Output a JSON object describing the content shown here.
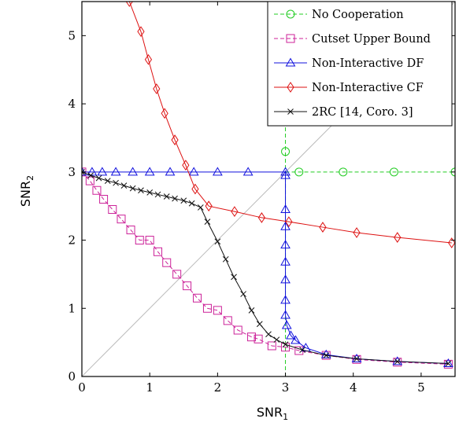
{
  "chart_data": {
    "type": "line",
    "xlabel": "SNR",
    "xlabel_sub": "1",
    "ylabel": "SNR",
    "ylabel_sub": "2",
    "xlim": [
      0,
      5.5
    ],
    "ylim": [
      0,
      5.5
    ],
    "xticks": [
      0,
      1,
      2,
      3,
      4,
      5
    ],
    "yticks": [
      0,
      1,
      2,
      3,
      4,
      5
    ],
    "grid": false,
    "legend_position": "top-right",
    "diagonal_reference": true,
    "series": [
      {
        "name": "No Cooperation",
        "color": "#22cc22",
        "dash": "dashed",
        "marker": "circle",
        "points": [
          [
            3,
            0
          ],
          [
            3,
            3
          ],
          [
            3,
            5.5
          ]
        ],
        "markers": [
          [
            3,
            3.3
          ],
          [
            3,
            4.45
          ],
          [
            3,
            5.5
          ]
        ],
        "points2": [
          [
            3,
            3
          ],
          [
            5.5,
            3
          ]
        ],
        "markers2": [
          [
            3.2,
            3
          ],
          [
            3.85,
            3
          ],
          [
            4.6,
            3
          ],
          [
            5.5,
            3
          ]
        ]
      },
      {
        "name": "Cutset Upper Bound",
        "color": "#cc2299",
        "dash": "dashed",
        "marker": "square",
        "points": [
          [
            0,
            3
          ],
          [
            0.12,
            2.87
          ],
          [
            0.22,
            2.73
          ],
          [
            0.32,
            2.6
          ],
          [
            0.45,
            2.45
          ],
          [
            0.58,
            2.31
          ],
          [
            0.72,
            2.15
          ],
          [
            0.85,
            2.0
          ],
          [
            1.0,
            2.0
          ],
          [
            1.12,
            1.83
          ],
          [
            1.25,
            1.67
          ],
          [
            1.4,
            1.5
          ],
          [
            1.55,
            1.33
          ],
          [
            1.7,
            1.15
          ],
          [
            1.85,
            1.0
          ],
          [
            2.0,
            0.97
          ],
          [
            2.15,
            0.82
          ],
          [
            2.3,
            0.68
          ],
          [
            2.5,
            0.58
          ],
          [
            2.6,
            0.55
          ],
          [
            2.8,
            0.45
          ],
          [
            3.0,
            0.43
          ],
          [
            3.2,
            0.38
          ],
          [
            3.6,
            0.31
          ],
          [
            4.05,
            0.25
          ],
          [
            4.65,
            0.21
          ],
          [
            5.4,
            0.18
          ]
        ]
      },
      {
        "name": "Non-Interactive DF",
        "color": "#1111dd",
        "dash": "solid",
        "marker": "triangle",
        "points": [
          [
            0,
            3
          ],
          [
            0.15,
            3
          ],
          [
            0.3,
            3
          ],
          [
            0.5,
            3
          ],
          [
            0.75,
            3
          ],
          [
            1.0,
            3
          ],
          [
            1.3,
            3
          ],
          [
            1.65,
            3
          ],
          [
            2.0,
            3
          ],
          [
            2.45,
            3
          ],
          [
            3.0,
            3
          ],
          [
            3.0,
            2.95
          ],
          [
            3.0,
            2.45
          ],
          [
            3.0,
            2.2
          ],
          [
            3.0,
            1.93
          ],
          [
            3.0,
            1.68
          ],
          [
            3.0,
            1.42
          ],
          [
            3.0,
            1.12
          ],
          [
            3.0,
            0.9
          ],
          [
            3.02,
            0.75
          ],
          [
            3.08,
            0.6
          ],
          [
            3.15,
            0.53
          ],
          [
            3.3,
            0.42
          ],
          [
            3.6,
            0.32
          ],
          [
            4.05,
            0.26
          ],
          [
            4.65,
            0.22
          ],
          [
            5.4,
            0.19
          ]
        ]
      },
      {
        "name": "Non-Interactive CF",
        "color": "#dd1111",
        "dash": "solid",
        "marker": "diamond",
        "points": [
          [
            0.7,
            5.5
          ],
          [
            0.87,
            5.06
          ],
          [
            0.98,
            4.65
          ],
          [
            1.1,
            4.22
          ],
          [
            1.22,
            3.86
          ],
          [
            1.37,
            3.47
          ],
          [
            1.53,
            3.1
          ],
          [
            1.67,
            2.75
          ],
          [
            1.87,
            2.5
          ],
          [
            2.25,
            2.42
          ],
          [
            2.65,
            2.33
          ],
          [
            3.05,
            2.27
          ],
          [
            3.55,
            2.19
          ],
          [
            4.05,
            2.11
          ],
          [
            4.65,
            2.04
          ],
          [
            5.45,
            1.96
          ]
        ]
      },
      {
        "name": "2RC [14, Coro. 3]",
        "color": "#111111",
        "dash": "solid",
        "marker": "x",
        "points": [
          [
            0,
            3
          ],
          [
            0.13,
            2.95
          ],
          [
            0.25,
            2.91
          ],
          [
            0.38,
            2.87
          ],
          [
            0.5,
            2.84
          ],
          [
            0.62,
            2.8
          ],
          [
            0.75,
            2.76
          ],
          [
            0.87,
            2.73
          ],
          [
            1.0,
            2.7
          ],
          [
            1.12,
            2.67
          ],
          [
            1.25,
            2.64
          ],
          [
            1.37,
            2.61
          ],
          [
            1.5,
            2.58
          ],
          [
            1.62,
            2.54
          ],
          [
            1.75,
            2.48
          ],
          [
            1.85,
            2.27
          ],
          [
            2.0,
            1.98
          ],
          [
            2.12,
            1.72
          ],
          [
            2.24,
            1.46
          ],
          [
            2.38,
            1.21
          ],
          [
            2.5,
            0.97
          ],
          [
            2.62,
            0.77
          ],
          [
            2.75,
            0.62
          ],
          [
            2.87,
            0.54
          ],
          [
            3.0,
            0.47
          ],
          [
            3.25,
            0.39
          ],
          [
            3.6,
            0.31
          ],
          [
            4.05,
            0.26
          ],
          [
            4.65,
            0.22
          ],
          [
            5.4,
            0.19
          ]
        ]
      }
    ]
  }
}
